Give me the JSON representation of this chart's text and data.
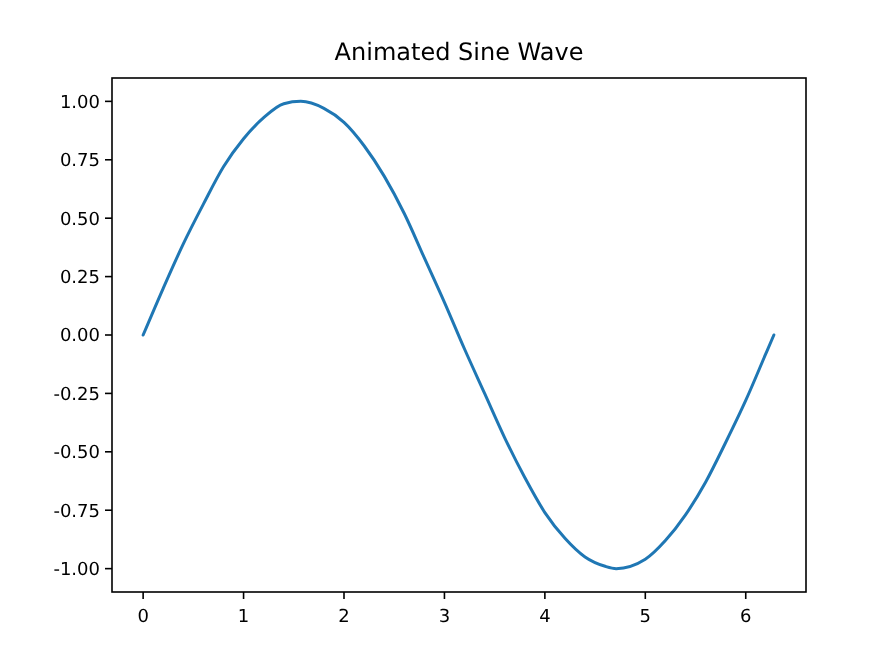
{
  "chart_data": {
    "type": "line",
    "title": "Animated Sine Wave",
    "x": [
      0,
      0.2,
      0.4,
      0.6,
      0.8,
      1.0,
      1.2,
      1.4,
      1.57,
      1.8,
      2.0,
      2.2,
      2.4,
      2.6,
      2.8,
      3.0,
      3.2,
      3.4,
      3.6,
      3.8,
      4.0,
      4.2,
      4.4,
      4.6,
      4.71,
      5.0,
      5.2,
      5.4,
      5.6,
      5.8,
      6.0,
      6.2,
      6.28
    ],
    "series": [
      {
        "color": "#1f77b4",
        "values": [
          0,
          0.2,
          0.39,
          0.56,
          0.72,
          0.84,
          0.93,
          0.99,
          1.0,
          0.97,
          0.91,
          0.81,
          0.68,
          0.52,
          0.33,
          0.14,
          -0.06,
          -0.25,
          -0.44,
          -0.61,
          -0.76,
          -0.87,
          -0.95,
          -0.99,
          -1.0,
          -0.96,
          -0.88,
          -0.77,
          -0.63,
          -0.46,
          -0.28,
          -0.08,
          0
        ]
      }
    ],
    "xlim": [
      -0.31,
      6.6
    ],
    "xticks": [
      0,
      1,
      2,
      3,
      4,
      5,
      6
    ],
    "ylim": [
      -1.1,
      1.1
    ],
    "yticks": [
      {
        "value": -1,
        "label": "-1.00"
      },
      {
        "value": -0.75,
        "label": "-0.75"
      },
      {
        "value": -0.5,
        "label": "-0.50"
      },
      {
        "value": -0.25,
        "label": "-0.25"
      },
      {
        "value": 0,
        "label": "0.00"
      },
      {
        "value": 0.25,
        "label": "0.25"
      },
      {
        "value": 0.5,
        "label": "0.50"
      },
      {
        "value": 0.75,
        "label": "0.75"
      },
      {
        "value": 1,
        "label": "1.00"
      }
    ],
    "grid": false,
    "marker": "none",
    "line_style": "solid"
  }
}
